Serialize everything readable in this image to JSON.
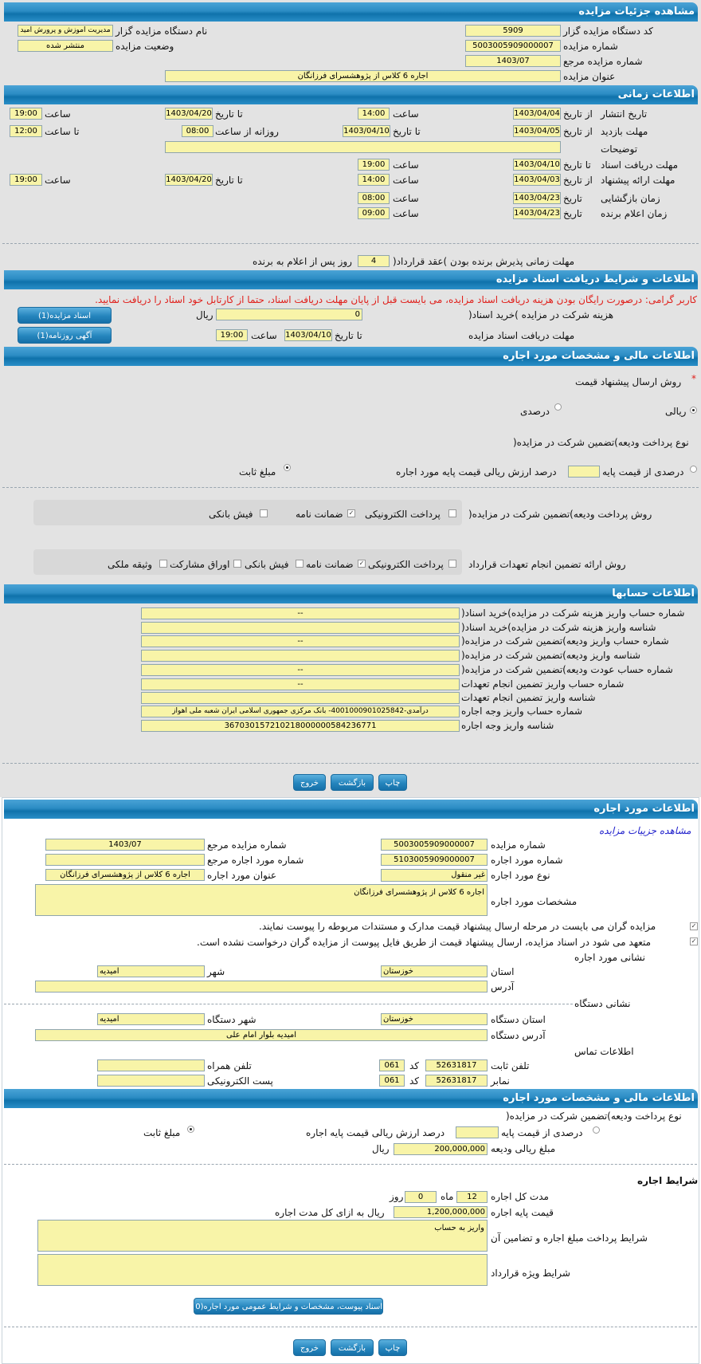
{
  "colors": {
    "header": "#1f80bb",
    "input": "#f8f4a8",
    "warning": "#e0201b",
    "link": "#2222cc",
    "page_bg": "#e3e3e3"
  },
  "auction": {
    "title": "مشاهده جزئیات مزایده",
    "org_code_label": "کد دستگاه مزایده گزار",
    "org_code": "5909",
    "org_name_label": "نام دستگاه مزایده گزار",
    "org_name": "مدیریت اموزش و پرورش امید",
    "number_label": "شماره مزایده",
    "number": "5003005909000007",
    "status_label": "وضعیت مزایده",
    "status": "منتشر شده",
    "ref_label": "شماره مزایده مرجع",
    "ref": "1403/07",
    "subject_label": "عنوان مزایده",
    "subject": "اجاره 6 کلاس از پژوهشسرای فرزانگان"
  },
  "timing": {
    "title": "اطلاعات زمانی",
    "from_date": "از تاریخ",
    "to_date": "تا تاریخ",
    "date": "تاریخ",
    "time": "ساعت",
    "to_time": "تا ساعت",
    "daily_from_time": "روزانه از ساعت",
    "publish": {
      "label": "تاریخ انتشار",
      "from": "1403/04/04",
      "from_time": "14:00",
      "to": "1403/04/20",
      "to_time": "19:00"
    },
    "visit": {
      "label": "مهلت بازدید",
      "from": "1403/04/05",
      "to": "1403/04/10",
      "daily_from": "08:00",
      "daily_to": "12:00"
    },
    "notes_label": "توضیحات",
    "notes": "",
    "doc_receive": {
      "label": "مهلت دریافت اسناد",
      "to": "1403/04/10",
      "time": "19:00"
    },
    "offer": {
      "label": "مهلت ارائه پیشنهاد",
      "from": "1403/04/03",
      "from_time": "14:00",
      "to": "1403/04/20",
      "to_time": "19:00"
    },
    "opening": {
      "label": "زمان بازگشایی",
      "date": "1403/04/23",
      "time": "08:00"
    },
    "winner": {
      "label": "زمان اعلام برنده",
      "date": "1403/04/23",
      "time": "09:00"
    },
    "acceptance_label_a": "مهلت زمانی پذیرش برنده بودن )عقد قرارداد(",
    "acceptance_days": "4",
    "acceptance_label_b": "روز پس از اعلام به برنده"
  },
  "documents": {
    "title": "اطلاعات و شرایط دریافت اسناد مزایده",
    "warning": "کاربر گرامی: درصورت رایگان بودن هزینه دریافت اسناد مزایده، می بایست قبل از پایان مهلت دریافت اسناد، حتما از کارتابل خود اسناد را دریافت نمایید.",
    "fee_label": "هزینه شرکت در مزایده )خرید اسناد(",
    "fee": "0",
    "rial": "ریال",
    "deadline_label": "مهلت دریافت اسناد مزایده",
    "to_date": "تا تاریخ",
    "date": "1403/04/10",
    "time_label": "ساعت",
    "time": "19:00",
    "docs_button": "اسناد مزایده(1)",
    "ad_button": "آگهی روزنامه(1)"
  },
  "financial": {
    "title": "اطلاعات مالی و مشخصات مورد اجاره",
    "price_method_label": "روش ارسال پیشنهاد قیمت",
    "required_mark": "*",
    "price_methods": [
      {
        "label": "ریالی",
        "selected": true
      },
      {
        "label": "درصدی",
        "selected": false
      }
    ],
    "deposit_type_label": "نوع پرداخت ودیعه)تضمین شرکت در مزایده(",
    "deposit_percent_label": "درصدی از قیمت پایه",
    "deposit_percent": "",
    "deposit_percent_suffix": "درصد ارزش ریالی قیمت پایه مورد اجاره",
    "deposit_percent_selected": false,
    "deposit_fixed_label": "مبلغ ثابت",
    "deposit_fixed_selected": true,
    "deposit_payment_label": "روش پرداخت ودیعه)تضمین شرکت در مزایده(",
    "deposit_payment_options": [
      {
        "label": "پرداخت الکترونیکی",
        "checked": false
      },
      {
        "label": "ضمانت نامه",
        "checked": true
      },
      {
        "label": "فیش بانکی",
        "checked": false
      }
    ],
    "guarantee_label": "روش ارائه تضمین انجام تعهدات قرارداد",
    "guarantee_options": [
      {
        "label": "پرداخت الکترونیکی",
        "checked": false
      },
      {
        "label": "ضمانت نامه",
        "checked": true
      },
      {
        "label": "فیش بانکی",
        "checked": false
      },
      {
        "label": "اوراق مشارکت",
        "checked": false
      },
      {
        "label": "وثیقه ملکی",
        "checked": false
      }
    ]
  },
  "accounts": {
    "title": "اطلاعات حسابها",
    "rows": [
      {
        "label": "شماره حساب واریز هزینه شرکت در مزایده)خرید اسناد(",
        "value": "--"
      },
      {
        "label": "شناسه واریز هزینه شرکت در مزایده)خرید اسناد(",
        "value": ""
      },
      {
        "label": "شماره حساب واریز ودیعه)تضمین شرکت در مزایده(",
        "value": "--"
      },
      {
        "label": "شناسه واریز ودیعه)تضمین شرکت در مزایده(",
        "value": ""
      },
      {
        "label": "شماره حساب عودت ودیعه)تضمین شرکت در مزایده(",
        "value": "--"
      },
      {
        "label": "شماره حساب واریز تضمین انجام تعهدات",
        "value": "--"
      },
      {
        "label": "شناسه واریز تضمین انجام تعهدات",
        "value": ""
      },
      {
        "label": "شماره حساب واریز وجه اجاره",
        "value": "درآمدی-4001000901025842- بانک مرکزی جمهوری اسلامی ایران شعبه ملی اهواز"
      },
      {
        "label": "شناسه واریز وجه اجاره",
        "value": "367030157210218000000584236771"
      }
    ]
  },
  "actions": {
    "print": "چاپ",
    "back": "بازگشت",
    "exit": "خروج"
  },
  "lease_item": {
    "title": "اطلاعات مورد اجاره",
    "view_link": "مشاهده جزییات مزایده",
    "auction_number_label": "شماره مزایده",
    "auction_number": "5003005909000007",
    "ref_label": "شماره مزایده مرجع",
    "ref": "1403/07",
    "item_number_label": "شماره مورد اجاره",
    "item_number": "5103005909000007",
    "item_ref_label": "شماره مورد اجاره مرجع",
    "item_ref": "",
    "type_label": "نوع مورد اجاره",
    "type": "غیر منقول",
    "item_title_label": "عنوان مورد اجاره",
    "item_title": "اجاره 6 کلاس از پژوهشسرای فرزانگان",
    "specs_label": "مشخصات مورد اجاره",
    "specs": "اجاره 6 کلاس از پژوهشسرای فرزانگان",
    "check1": "مزایده گران می بایست در مرحله ارسال پیشنهاد قیمت مدارک و مستندات مربوطه را پیوست نمایند.",
    "check2": "متعهد می شود در اسناد مزایده، ارسال پیشنهاد قیمت از طریق فایل پیوست از مزایده گران درخواست نشده است.",
    "address_title": "نشانی مورد اجاره",
    "province_label": "استان",
    "province": "خوزستان",
    "city_label": "شهر",
    "city": "امیدیه",
    "address_label": "آدرس",
    "address": "",
    "org_address_title": "نشانی دستگاه",
    "org_province_label": "استان دستگاه",
    "org_province": "خوزستان",
    "org_city_label": "شهر دستگاه",
    "org_city": "امیدیه",
    "org_address_label": "آدرس دستگاه",
    "org_address": "امیدیه بلوار امام علی",
    "contact_title": "اطلاعات تماس",
    "phone_label": "تلفن ثابت",
    "phone": "52631817",
    "code_label": "کد",
    "phone_code": "061",
    "mobile_label": "تلفن همراه",
    "mobile": "",
    "fax_label": "نمابر",
    "fax": "52631817",
    "fax_code": "061",
    "email_label": "پست الکترونیکی",
    "email": ""
  },
  "lease_financial": {
    "title": "اطلاعات مالی و مشخصات مورد اجاره",
    "deposit_type_label": "نوع پرداخت ودیعه)تضمین شرکت در مزایده(",
    "percent_label": "درصدی از قیمت پایه",
    "percent": "",
    "percent_suffix": "درصد ارزش ریالی قیمت پایه اجاره",
    "percent_selected": false,
    "fixed_label": "مبلغ ثابت",
    "fixed_selected": true,
    "deposit_amount_label": "مبلغ ریالی ودیعه",
    "deposit_amount": "200,000,000",
    "rial": "ریال",
    "terms_title": "شرایط اجاره",
    "duration_label": "مدت کل اجاره",
    "months": "12",
    "month_label": "ماه",
    "days": "0",
    "day_label": "روز",
    "base_price_label": "قیمت پایه اجاره",
    "base_price": "1,200,000,000",
    "base_price_suffix": "ریال به ازای کل مدت اجاره",
    "payment_terms_label": "شرایط پرداخت مبلغ اجاره و تضامین آن",
    "payment_terms": "واریز به حساب",
    "special_terms_label": "شرایط ویژه قرارداد",
    "special_terms": "",
    "attachments_button": "اسناد پیوست، مشخصات و شرایط عمومی مورد اجاره(0)"
  }
}
